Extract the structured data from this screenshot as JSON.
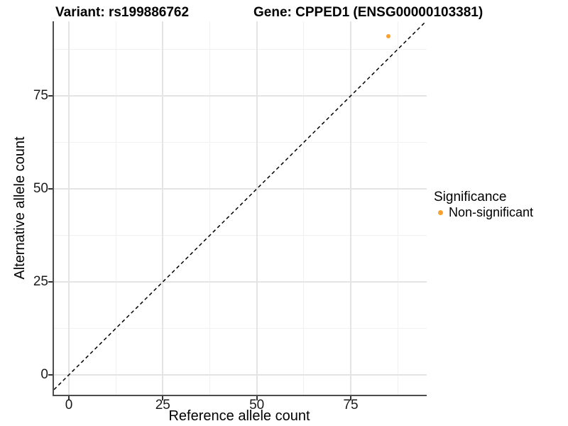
{
  "header": {
    "variant_title": "Variant: rs199886762",
    "gene_title": "Gene: CPPED1 (ENSG00000103381)"
  },
  "chart_data": {
    "type": "scatter",
    "title": "Variant: rs199886762    Gene: CPPED1 (ENSG00000103381)",
    "xlabel": "Reference allele count",
    "ylabel": "Alternative allele count",
    "x_ticks": [
      0,
      25,
      50,
      75
    ],
    "y_ticks": [
      0,
      25,
      50,
      75
    ],
    "x_minor_ticks": [
      12.5,
      37.5,
      62.5,
      87.5
    ],
    "y_minor_ticks": [
      12.5,
      37.5,
      62.5,
      87.5
    ],
    "xlim": [
      -4,
      94.9
    ],
    "ylim": [
      -5.3,
      95
    ],
    "grid": "major+minor",
    "legend_position": "right",
    "points": [
      {
        "x": 85,
        "y": 91,
        "series": "Non-significant",
        "color": "#F9A232"
      }
    ],
    "reference_line": {
      "slope": 1,
      "intercept": 0,
      "style": "dashed",
      "color": "#000000"
    },
    "legend": {
      "title": "Significance",
      "items": [
        {
          "label": "Non-significant",
          "color": "#F9A232"
        }
      ]
    }
  }
}
